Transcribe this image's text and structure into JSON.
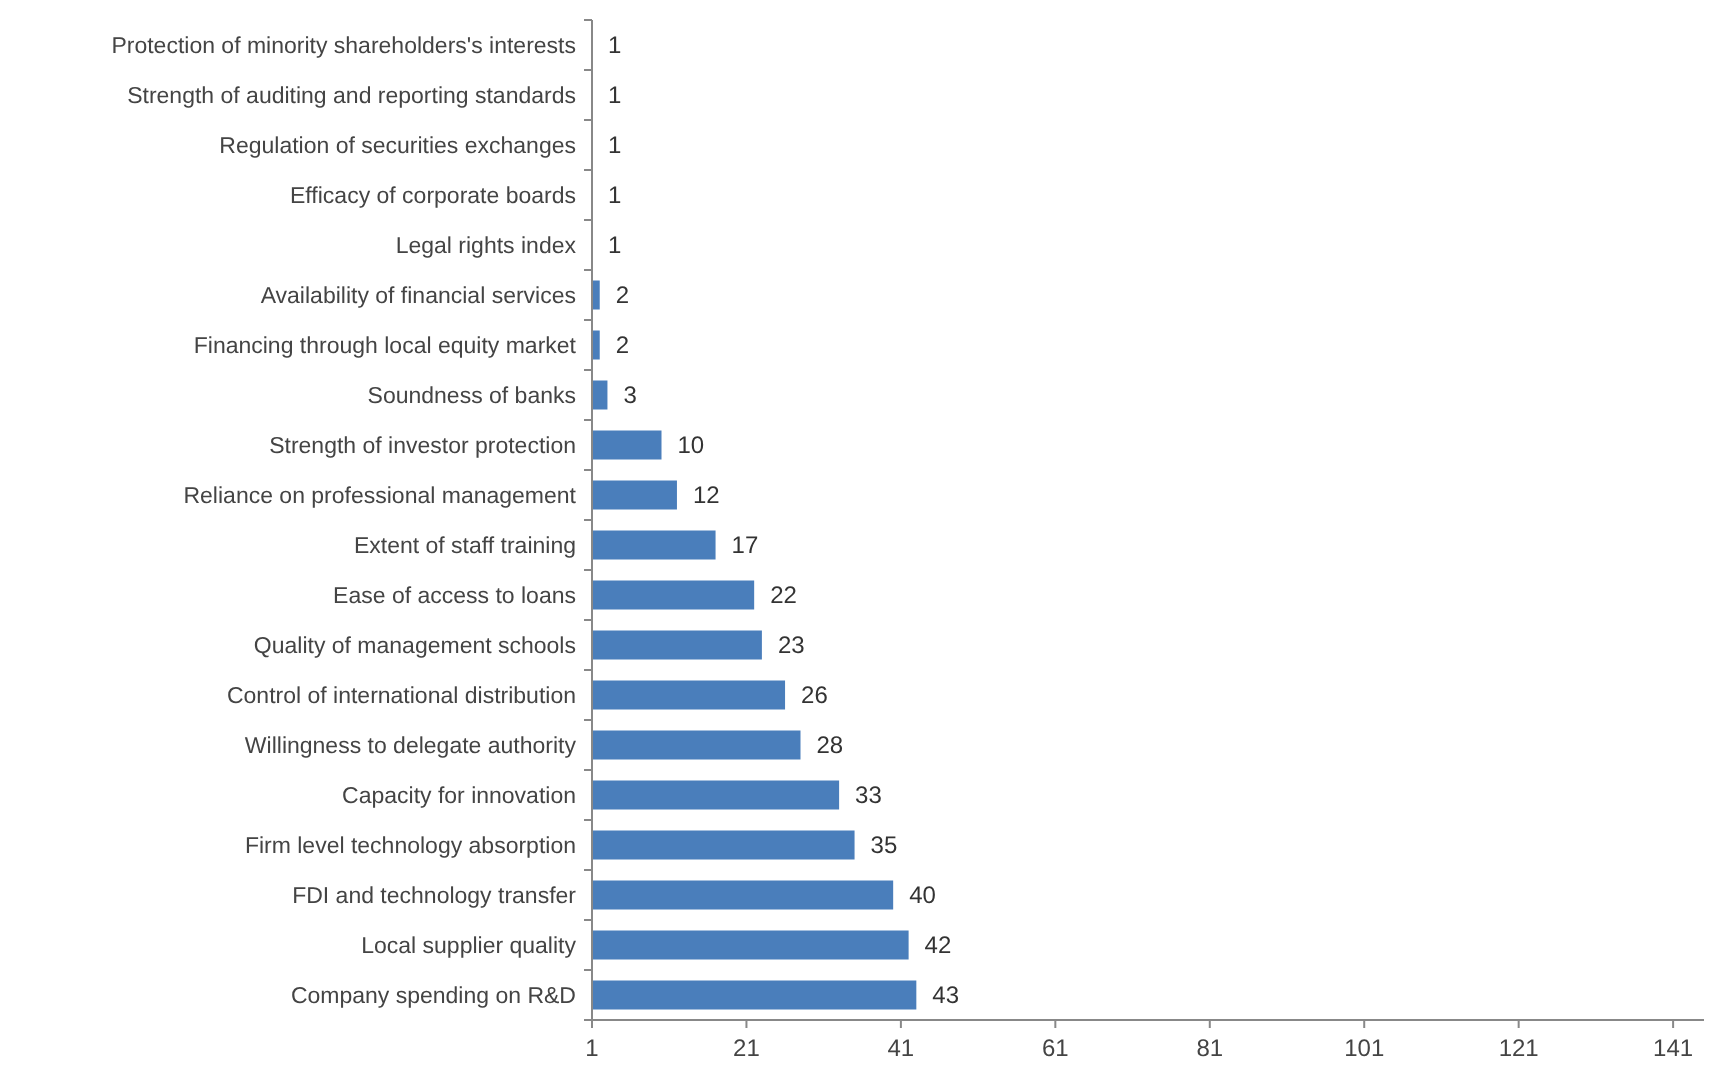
{
  "chart_data": {
    "type": "bar",
    "orientation": "horizontal",
    "categories": [
      "Protection of minority shareholders's interests",
      "Strength of auditing and reporting standards",
      "Regulation of securities exchanges",
      "Efficacy of corporate boards",
      "Legal rights index",
      "Availability of financial services",
      "Financing through local equity market",
      "Soundness of banks",
      "Strength of investor protection",
      "Reliance on professional management",
      "Extent of staff training",
      "Ease of access to loans",
      "Quality of management schools",
      "Control of international distribution",
      "Willingness to delegate authority",
      "Capacity for innovation",
      "Firm level technology absorption",
      "FDI and technology transfer",
      "Local supplier quality",
      "Company spending on R&D"
    ],
    "values": [
      1,
      1,
      1,
      1,
      1,
      2,
      2,
      3,
      10,
      12,
      17,
      22,
      23,
      26,
      28,
      33,
      35,
      40,
      42,
      43
    ],
    "color": "#4a7ebb",
    "data_labels": true,
    "xlim": [
      1,
      145
    ],
    "xticks": [
      1,
      21,
      41,
      61,
      81,
      101,
      121,
      141
    ]
  }
}
